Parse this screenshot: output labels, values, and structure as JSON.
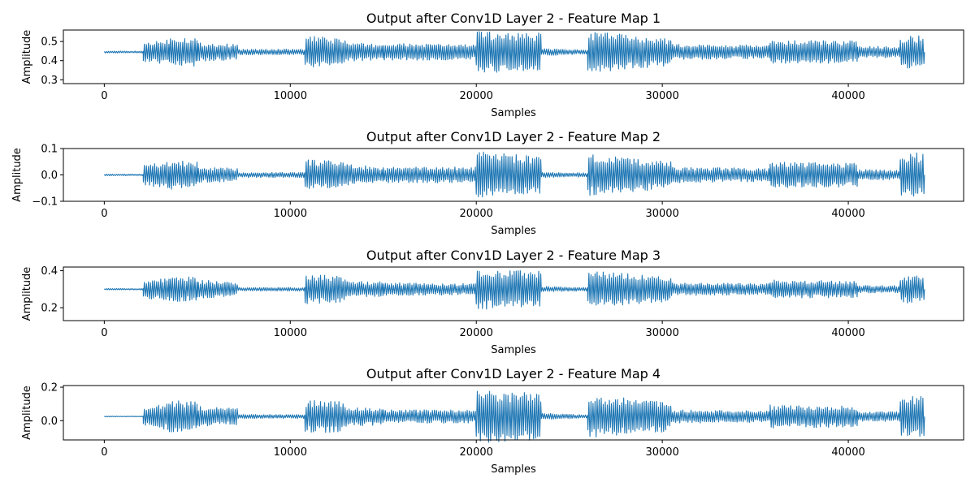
{
  "figure": {
    "line_color": "#1f77b4"
  },
  "chart_data": [
    {
      "type": "line",
      "title": "Output after Conv1D Layer 2 - Feature Map 1",
      "xlabel": "Samples",
      "ylabel": "Amplitude",
      "xlim": [
        -2200,
        46200
      ],
      "ylim": [
        0.28,
        0.56
      ],
      "xticks": [
        0,
        10000,
        20000,
        30000,
        40000
      ],
      "xtick_labels": [
        "0",
        "10000",
        "20000",
        "30000",
        "40000"
      ],
      "yticks": [
        0.3,
        0.4,
        0.5
      ],
      "ytick_labels": [
        "0.3",
        "0.4",
        "0.5"
      ],
      "grid": false,
      "baseline": 0.445,
      "segments": [
        {
          "x": [
            0,
            2100
          ],
          "amp": [
            0.005,
            0.005
          ]
        },
        {
          "x": [
            2100,
            3500
          ],
          "amp": [
            0.05,
            0.07
          ]
        },
        {
          "x": [
            3500,
            5000
          ],
          "amp": [
            0.085,
            0.075
          ]
        },
        {
          "x": [
            5000,
            7200
          ],
          "amp": [
            0.05,
            0.04
          ]
        },
        {
          "x": [
            7200,
            10800
          ],
          "amp": [
            0.015,
            0.015
          ]
        },
        {
          "x": [
            10800,
            13000
          ],
          "amp": [
            0.085,
            0.07
          ]
        },
        {
          "x": [
            13000,
            15000
          ],
          "amp": [
            0.05,
            0.04
          ]
        },
        {
          "x": [
            15000,
            20000
          ],
          "amp": [
            0.045,
            0.04
          ]
        },
        {
          "x": [
            20000,
            23500
          ],
          "amp": [
            0.11,
            0.1
          ]
        },
        {
          "x": [
            23500,
            26000
          ],
          "amp": [
            0.02,
            0.01
          ]
        },
        {
          "x": [
            26000,
            30500
          ],
          "amp": [
            0.11,
            0.07
          ]
        },
        {
          "x": [
            30500,
            35800
          ],
          "amp": [
            0.04,
            0.035
          ]
        },
        {
          "x": [
            35800,
            40500
          ],
          "amp": [
            0.06,
            0.06
          ]
        },
        {
          "x": [
            40500,
            42800
          ],
          "amp": [
            0.03,
            0.03
          ]
        },
        {
          "x": [
            42800,
            44100
          ],
          "amp": [
            0.085,
            0.085
          ]
        }
      ]
    },
    {
      "type": "line",
      "title": "Output after Conv1D Layer 2 - Feature Map 2",
      "xlabel": "Samples",
      "ylabel": "Amplitude",
      "xlim": [
        -2200,
        46200
      ],
      "ylim": [
        -0.1,
        0.1
      ],
      "xticks": [
        0,
        10000,
        20000,
        30000,
        40000
      ],
      "xtick_labels": [
        "0",
        "10000",
        "20000",
        "30000",
        "40000"
      ],
      "yticks": [
        -0.1,
        0.0,
        0.1
      ],
      "ytick_labels": [
        "−0.1",
        "0.0",
        "0.1"
      ],
      "grid": false,
      "baseline": 0.0,
      "segments": [
        {
          "x": [
            0,
            2100
          ],
          "amp": [
            0.003,
            0.003
          ]
        },
        {
          "x": [
            2100,
            3500
          ],
          "amp": [
            0.04,
            0.05
          ]
        },
        {
          "x": [
            3500,
            5000
          ],
          "amp": [
            0.055,
            0.05
          ]
        },
        {
          "x": [
            5000,
            7200
          ],
          "amp": [
            0.03,
            0.025
          ]
        },
        {
          "x": [
            7200,
            10800
          ],
          "amp": [
            0.01,
            0.01
          ]
        },
        {
          "x": [
            10800,
            13000
          ],
          "amp": [
            0.06,
            0.05
          ]
        },
        {
          "x": [
            13000,
            15000
          ],
          "amp": [
            0.04,
            0.03
          ]
        },
        {
          "x": [
            15000,
            20000
          ],
          "amp": [
            0.03,
            0.03
          ]
        },
        {
          "x": [
            20000,
            23500
          ],
          "amp": [
            0.09,
            0.07
          ]
        },
        {
          "x": [
            23500,
            26000
          ],
          "amp": [
            0.01,
            0.008
          ]
        },
        {
          "x": [
            26000,
            30500
          ],
          "amp": [
            0.08,
            0.05
          ]
        },
        {
          "x": [
            30500,
            35800
          ],
          "amp": [
            0.03,
            0.025
          ]
        },
        {
          "x": [
            35800,
            40500
          ],
          "amp": [
            0.05,
            0.045
          ]
        },
        {
          "x": [
            40500,
            42800
          ],
          "amp": [
            0.02,
            0.02
          ]
        },
        {
          "x": [
            42800,
            44100
          ],
          "amp": [
            0.085,
            0.085
          ]
        }
      ]
    },
    {
      "type": "line",
      "title": "Output after Conv1D Layer 2 - Feature Map 3",
      "xlabel": "Samples",
      "ylabel": "Amplitude",
      "xlim": [
        -2200,
        46200
      ],
      "ylim": [
        0.13,
        0.42
      ],
      "xticks": [
        0,
        10000,
        20000,
        30000,
        40000
      ],
      "xtick_labels": [
        "0",
        "10000",
        "20000",
        "30000",
        "40000"
      ],
      "yticks": [
        0.2,
        0.4
      ],
      "ytick_labels": [
        "0.2",
        "0.4"
      ],
      "grid": false,
      "baseline": 0.3,
      "segments": [
        {
          "x": [
            0,
            2100
          ],
          "amp": [
            0.004,
            0.004
          ]
        },
        {
          "x": [
            2100,
            3500
          ],
          "amp": [
            0.05,
            0.06
          ]
        },
        {
          "x": [
            3500,
            5000
          ],
          "amp": [
            0.07,
            0.065
          ]
        },
        {
          "x": [
            5000,
            7200
          ],
          "amp": [
            0.05,
            0.04
          ]
        },
        {
          "x": [
            7200,
            10800
          ],
          "amp": [
            0.01,
            0.01
          ]
        },
        {
          "x": [
            10800,
            13000
          ],
          "amp": [
            0.08,
            0.07
          ]
        },
        {
          "x": [
            13000,
            15000
          ],
          "amp": [
            0.045,
            0.04
          ]
        },
        {
          "x": [
            15000,
            20000
          ],
          "amp": [
            0.035,
            0.03
          ]
        },
        {
          "x": [
            20000,
            23500
          ],
          "amp": [
            0.11,
            0.1
          ]
        },
        {
          "x": [
            23500,
            26000
          ],
          "amp": [
            0.015,
            0.01
          ]
        },
        {
          "x": [
            26000,
            30500
          ],
          "amp": [
            0.1,
            0.07
          ]
        },
        {
          "x": [
            30500,
            35800
          ],
          "amp": [
            0.035,
            0.03
          ]
        },
        {
          "x": [
            35800,
            40500
          ],
          "amp": [
            0.05,
            0.045
          ]
        },
        {
          "x": [
            40500,
            42800
          ],
          "amp": [
            0.02,
            0.02
          ]
        },
        {
          "x": [
            42800,
            44100
          ],
          "amp": [
            0.075,
            0.075
          ]
        }
      ]
    },
    {
      "type": "line",
      "title": "Output after Conv1D Layer 2 - Feature Map 4",
      "xlabel": "Samples",
      "ylabel": "Amplitude",
      "xlim": [
        -2200,
        46200
      ],
      "ylim": [
        -0.115,
        0.21
      ],
      "xticks": [
        0,
        10000,
        20000,
        30000,
        40000
      ],
      "xtick_labels": [
        "0",
        "10000",
        "20000",
        "30000",
        "40000"
      ],
      "yticks": [
        0.0,
        0.2
      ],
      "ytick_labels": [
        "0.0",
        "0.2"
      ],
      "grid": false,
      "baseline": 0.025,
      "segments": [
        {
          "x": [
            0,
            2100
          ],
          "amp": [
            0.002,
            0.002
          ]
        },
        {
          "x": [
            2100,
            3500
          ],
          "amp": [
            0.06,
            0.08
          ]
        },
        {
          "x": [
            3500,
            5000
          ],
          "amp": [
            0.1,
            0.09
          ]
        },
        {
          "x": [
            5000,
            7200
          ],
          "amp": [
            0.06,
            0.05
          ]
        },
        {
          "x": [
            7200,
            10800
          ],
          "amp": [
            0.012,
            0.012
          ]
        },
        {
          "x": [
            10800,
            13000
          ],
          "amp": [
            0.1,
            0.09
          ]
        },
        {
          "x": [
            13000,
            15000
          ],
          "amp": [
            0.06,
            0.05
          ]
        },
        {
          "x": [
            15000,
            20000
          ],
          "amp": [
            0.04,
            0.04
          ]
        },
        {
          "x": [
            20000,
            23500
          ],
          "amp": [
            0.16,
            0.14
          ]
        },
        {
          "x": [
            23500,
            26000
          ],
          "amp": [
            0.02,
            0.01
          ]
        },
        {
          "x": [
            26000,
            30500
          ],
          "amp": [
            0.13,
            0.09
          ]
        },
        {
          "x": [
            30500,
            35800
          ],
          "amp": [
            0.04,
            0.035
          ]
        },
        {
          "x": [
            35800,
            40500
          ],
          "amp": [
            0.07,
            0.065
          ]
        },
        {
          "x": [
            40500,
            42800
          ],
          "amp": [
            0.03,
            0.03
          ]
        },
        {
          "x": [
            42800,
            44100
          ],
          "amp": [
            0.12,
            0.12
          ]
        }
      ]
    }
  ]
}
